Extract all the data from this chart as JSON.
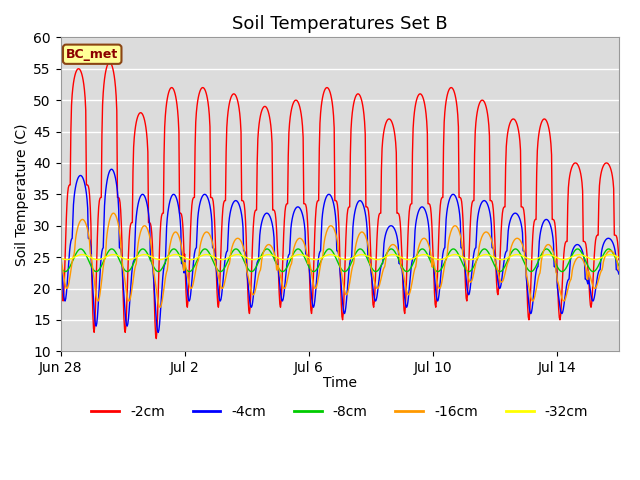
{
  "title": "Soil Temperatures Set B",
  "xlabel": "Time",
  "ylabel": "Soil Temperature (C)",
  "ylim": [
    10,
    60
  ],
  "yticks": [
    10,
    15,
    20,
    25,
    30,
    35,
    40,
    45,
    50,
    55,
    60
  ],
  "xtick_labels": [
    "Jun 28",
    "Jul 2",
    "Jul 6",
    "Jul 10",
    "Jul 14"
  ],
  "xtick_days": [
    0,
    4,
    8,
    12,
    16
  ],
  "annotation_text": "BC_met",
  "series": [
    {
      "label": "-2cm",
      "color": "#FF0000"
    },
    {
      "label": "-4cm",
      "color": "#0000FF"
    },
    {
      "label": "-8cm",
      "color": "#00CC00"
    },
    {
      "label": "-16cm",
      "color": "#FF9900"
    },
    {
      "label": "-32cm",
      "color": "#FFFF00"
    }
  ],
  "bg_color": "#DCDCDC",
  "grid_color": "#FFFFFF",
  "title_fontsize": 13,
  "axis_fontsize": 10,
  "legend_fontsize": 10,
  "total_days": 18,
  "hours_per_day": 48,
  "peak_amps_2cm": [
    55,
    56,
    48,
    52,
    52,
    51,
    49,
    50,
    52,
    51,
    47,
    51,
    52,
    50,
    47,
    47,
    40,
    40
  ],
  "trough_vals_2cm": [
    18,
    13,
    13,
    12,
    17,
    17,
    16,
    17,
    16,
    15,
    17,
    16,
    17,
    18,
    19,
    15,
    15,
    17
  ],
  "peak_4cm": [
    38,
    39,
    35,
    35,
    35,
    34,
    32,
    33,
    35,
    34,
    30,
    33,
    35,
    34,
    32,
    31,
    27,
    28
  ],
  "trough_4cm": [
    18,
    14,
    14,
    13,
    18,
    18,
    17,
    18,
    17,
    16,
    18,
    17,
    18,
    19,
    20,
    16,
    16,
    18
  ],
  "peak_16cm": [
    31,
    32,
    30,
    29,
    29,
    28,
    27,
    28,
    30,
    29,
    27,
    28,
    30,
    29,
    28,
    27,
    25,
    26
  ],
  "trough_16cm": [
    20,
    18,
    18,
    17,
    20,
    20,
    19,
    20,
    20,
    19,
    20,
    19,
    20,
    21,
    21,
    18,
    18,
    20
  ]
}
